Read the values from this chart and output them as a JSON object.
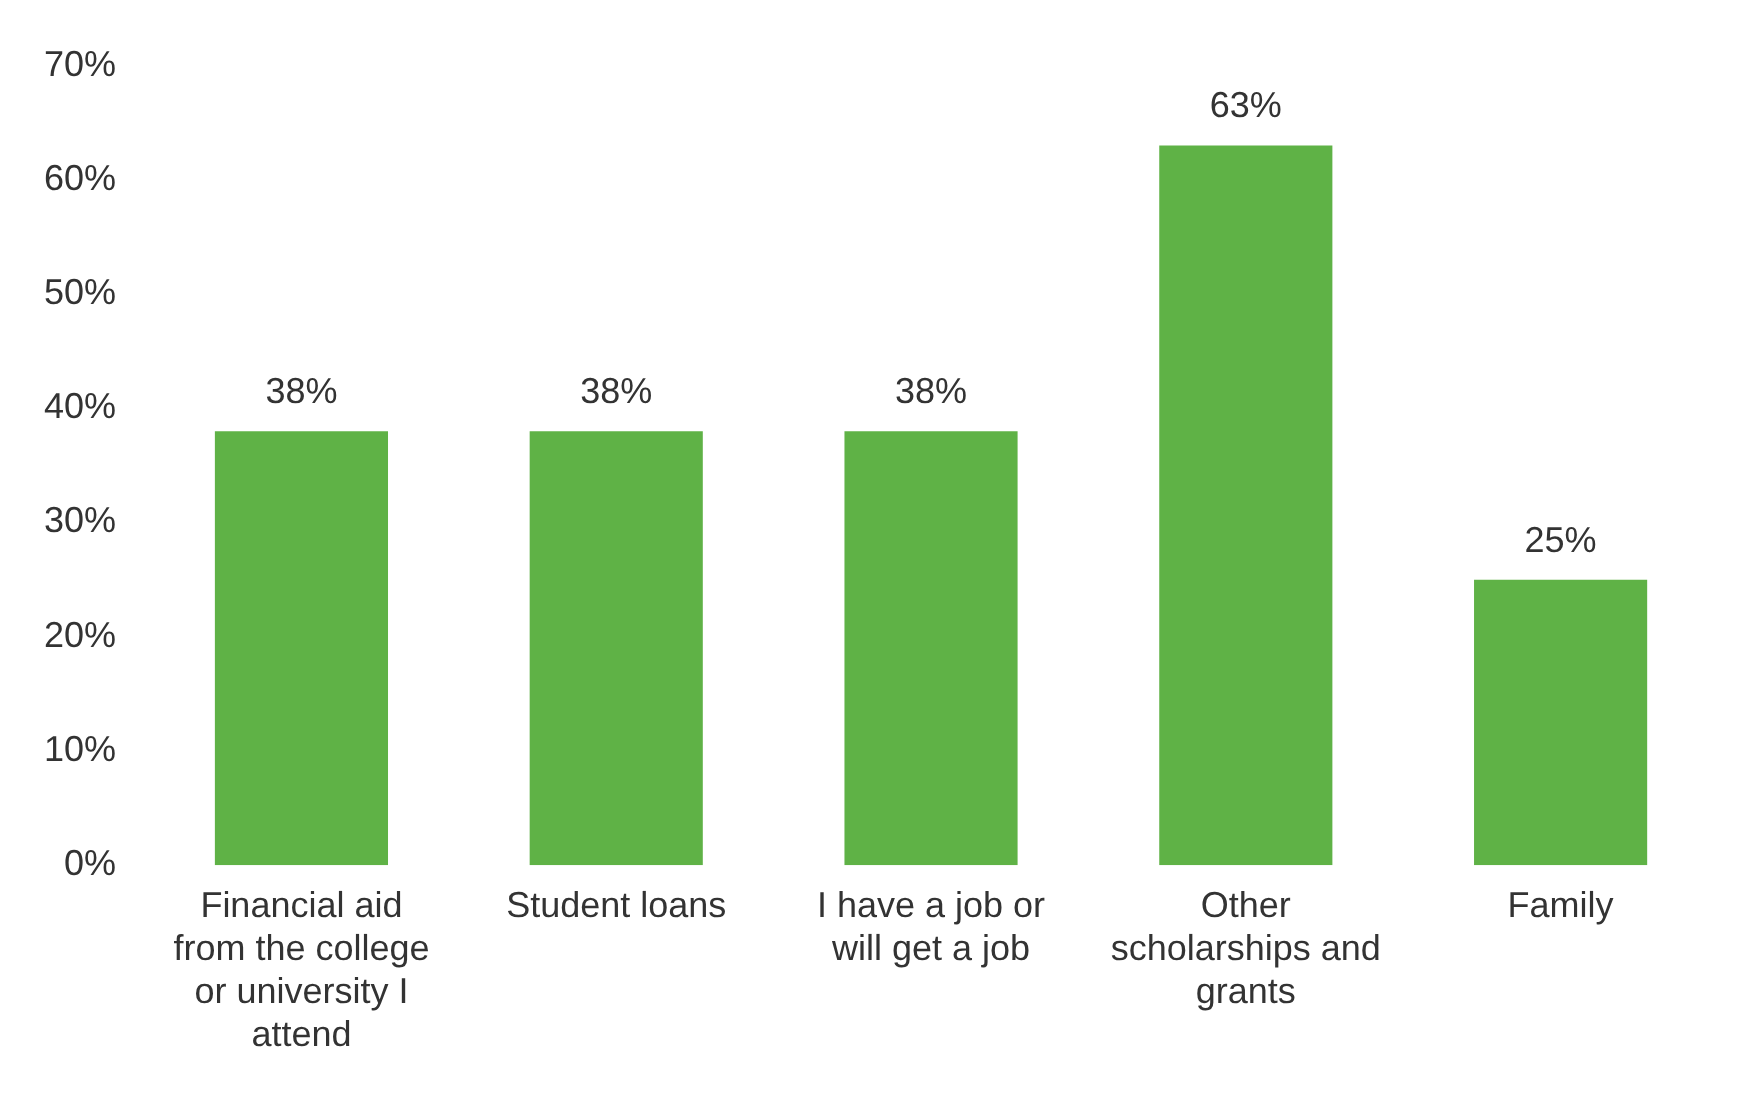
{
  "chart_data": {
    "type": "bar",
    "categories": [
      "Financial aid from the college or university I attend",
      "Student loans",
      "I have a job or will get a job",
      "Other scholarships and grants",
      "Family"
    ],
    "values": [
      38,
      38,
      38,
      63,
      25
    ],
    "value_labels": [
      "38%",
      "38%",
      "38%",
      "63%",
      "25%"
    ],
    "color": "#5fb246",
    "ylim": [
      0,
      70
    ],
    "yticks": [
      {
        "value": 0,
        "label": "0%"
      },
      {
        "value": 10,
        "label": "10%"
      },
      {
        "value": 20,
        "label": "20%"
      },
      {
        "value": 30,
        "label": "30%"
      },
      {
        "value": 40,
        "label": "40%"
      },
      {
        "value": 50,
        "label": "50%"
      },
      {
        "value": 60,
        "label": "60%"
      },
      {
        "value": 70,
        "label": "70%"
      }
    ],
    "grid": false,
    "legend": false
  }
}
